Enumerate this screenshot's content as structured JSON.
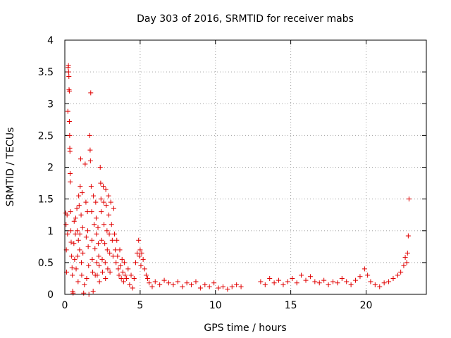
{
  "chart_data": {
    "type": "scatter",
    "title": "Day 303 of 2016, SRMTID for receiver mabs",
    "xlabel": "GPS time / hours",
    "ylabel": "SRMTID / TECUs",
    "xlim": [
      0,
      24
    ],
    "ylim": [
      0,
      4
    ],
    "xticks": [
      0,
      5,
      10,
      15,
      20
    ],
    "xtick_labels": [
      "0",
      "5",
      "10",
      "15",
      "20"
    ],
    "yticks": [
      0,
      0.5,
      1,
      1.5,
      2,
      2.5,
      3,
      3.5,
      4
    ],
    "ytick_labels": [
      "0",
      "0.5",
      "1",
      "1.5",
      "2",
      "2.5",
      "3",
      "3.5",
      "4"
    ],
    "grid": true,
    "marker": "+",
    "color": "#e00000",
    "series": [
      {
        "name": "SRMTID",
        "points": [
          [
            0.05,
            1.28
          ],
          [
            0.08,
            1.1
          ],
          [
            0.1,
            0.7
          ],
          [
            0.12,
            0.35
          ],
          [
            0.15,
            1.25
          ],
          [
            0.18,
            0.95
          ],
          [
            0.2,
            2.88
          ],
          [
            0.22,
            3.57
          ],
          [
            0.24,
            3.6
          ],
          [
            0.25,
            3.5
          ],
          [
            0.27,
            3.43
          ],
          [
            0.28,
            3.22
          ],
          [
            0.3,
            3.2
          ],
          [
            0.3,
            2.72
          ],
          [
            0.32,
            2.5
          ],
          [
            0.33,
            2.3
          ],
          [
            0.34,
            2.25
          ],
          [
            0.35,
            1.9
          ],
          [
            0.36,
            1.77
          ],
          [
            0.38,
            1.3
          ],
          [
            0.4,
            1.0
          ],
          [
            0.42,
            0.82
          ],
          [
            0.45,
            0.6
          ],
          [
            0.48,
            0.42
          ],
          [
            0.5,
            0.3
          ],
          [
            0.52,
            0.05
          ],
          [
            0.55,
            0.02
          ],
          [
            0.6,
            0.8
          ],
          [
            0.62,
            1.15
          ],
          [
            0.65,
            0.55
          ],
          [
            0.7,
            0.95
          ],
          [
            0.72,
            1.2
          ],
          [
            0.75,
            0.4
          ],
          [
            0.8,
            1.35
          ],
          [
            0.82,
            1.0
          ],
          [
            0.85,
            0.6
          ],
          [
            0.88,
            0.2
          ],
          [
            0.9,
            0.85
          ],
          [
            0.92,
            1.55
          ],
          [
            0.95,
            1.4
          ],
          [
            0.98,
            0.7
          ],
          [
            1.0,
            0.95
          ],
          [
            1.02,
            1.7
          ],
          [
            1.05,
            2.13
          ],
          [
            1.08,
            1.25
          ],
          [
            1.1,
            0.5
          ],
          [
            1.12,
            0.3
          ],
          [
            1.15,
            1.6
          ],
          [
            1.18,
            1.05
          ],
          [
            1.2,
            0.65
          ],
          [
            1.25,
            0.02
          ],
          [
            1.3,
            0.15
          ],
          [
            1.35,
            2.05
          ],
          [
            1.4,
            1.45
          ],
          [
            1.42,
            0.9
          ],
          [
            1.45,
            0.25
          ],
          [
            1.5,
            1.3
          ],
          [
            1.52,
            1.0
          ],
          [
            1.55,
            0.75
          ],
          [
            1.58,
            0.45
          ],
          [
            1.6,
            0.0
          ],
          [
            1.65,
            2.5
          ],
          [
            1.68,
            2.27
          ],
          [
            1.7,
            2.1
          ],
          [
            1.72,
            3.17
          ],
          [
            1.75,
            1.7
          ],
          [
            1.78,
            1.3
          ],
          [
            1.8,
            0.85
          ],
          [
            1.82,
            0.55
          ],
          [
            1.85,
            0.35
          ],
          [
            1.88,
            0.05
          ],
          [
            1.9,
            1.55
          ],
          [
            1.95,
            1.1
          ],
          [
            2.0,
            0.72
          ],
          [
            2.02,
            0.3
          ],
          [
            2.05,
            1.45
          ],
          [
            2.08,
            1.2
          ],
          [
            2.1,
            0.95
          ],
          [
            2.12,
            0.5
          ],
          [
            2.15,
            0.3
          ],
          [
            2.2,
            1.05
          ],
          [
            2.22,
            0.8
          ],
          [
            2.25,
            0.6
          ],
          [
            2.28,
            0.45
          ],
          [
            2.3,
            0.2
          ],
          [
            2.35,
            2.0
          ],
          [
            2.38,
            1.75
          ],
          [
            2.4,
            1.5
          ],
          [
            2.42,
            1.3
          ],
          [
            2.45,
            0.85
          ],
          [
            2.48,
            0.55
          ],
          [
            2.5,
            0.35
          ],
          [
            2.55,
            1.7
          ],
          [
            2.58,
            1.45
          ],
          [
            2.6,
            1.1
          ],
          [
            2.65,
            0.8
          ],
          [
            2.68,
            0.5
          ],
          [
            2.7,
            0.25
          ],
          [
            2.72,
            1.65
          ],
          [
            2.75,
            1.4
          ],
          [
            2.8,
            1.0
          ],
          [
            2.82,
            0.7
          ],
          [
            2.85,
            0.4
          ],
          [
            2.9,
            1.55
          ],
          [
            2.92,
            1.25
          ],
          [
            2.95,
            0.95
          ],
          [
            2.98,
            0.65
          ],
          [
            3.0,
            0.35
          ],
          [
            3.05,
            1.45
          ],
          [
            3.1,
            1.1
          ],
          [
            3.15,
            0.85
          ],
          [
            3.2,
            0.6
          ],
          [
            3.25,
            1.35
          ],
          [
            3.3,
            0.95
          ],
          [
            3.35,
            0.7
          ],
          [
            3.4,
            0.5
          ],
          [
            3.45,
            0.85
          ],
          [
            3.5,
            0.6
          ],
          [
            3.55,
            0.4
          ],
          [
            3.6,
            0.3
          ],
          [
            3.65,
            0.7
          ],
          [
            3.7,
            0.45
          ],
          [
            3.75,
            0.25
          ],
          [
            3.8,
            0.55
          ],
          [
            3.85,
            0.35
          ],
          [
            3.9,
            0.2
          ],
          [
            3.95,
            0.5
          ],
          [
            4.0,
            0.3
          ],
          [
            4.1,
            0.25
          ],
          [
            4.2,
            0.4
          ],
          [
            4.3,
            0.15
          ],
          [
            4.4,
            0.3
          ],
          [
            4.5,
            0.1
          ],
          [
            4.6,
            0.25
          ],
          [
            4.7,
            0.5
          ],
          [
            4.8,
            0.65
          ],
          [
            4.9,
            0.85
          ],
          [
            4.95,
            0.6
          ],
          [
            5.0,
            0.7
          ],
          [
            5.05,
            0.45
          ],
          [
            5.1,
            0.65
          ],
          [
            5.2,
            0.55
          ],
          [
            5.3,
            0.4
          ],
          [
            5.4,
            0.3
          ],
          [
            5.5,
            0.25
          ],
          [
            5.6,
            0.18
          ],
          [
            5.8,
            0.12
          ],
          [
            6.0,
            0.2
          ],
          [
            6.3,
            0.15
          ],
          [
            6.6,
            0.22
          ],
          [
            6.9,
            0.18
          ],
          [
            7.2,
            0.15
          ],
          [
            7.5,
            0.2
          ],
          [
            7.8,
            0.12
          ],
          [
            8.1,
            0.18
          ],
          [
            8.4,
            0.15
          ],
          [
            8.7,
            0.2
          ],
          [
            9.0,
            0.1
          ],
          [
            9.3,
            0.15
          ],
          [
            9.6,
            0.12
          ],
          [
            9.9,
            0.18
          ],
          [
            10.2,
            0.1
          ],
          [
            10.5,
            0.12
          ],
          [
            10.8,
            0.08
          ],
          [
            11.1,
            0.12
          ],
          [
            11.4,
            0.15
          ],
          [
            11.7,
            0.12
          ],
          [
            13.0,
            0.2
          ],
          [
            13.3,
            0.15
          ],
          [
            13.6,
            0.25
          ],
          [
            13.9,
            0.18
          ],
          [
            14.2,
            0.22
          ],
          [
            14.5,
            0.15
          ],
          [
            14.8,
            0.2
          ],
          [
            15.1,
            0.25
          ],
          [
            15.4,
            0.18
          ],
          [
            15.7,
            0.3
          ],
          [
            16.0,
            0.22
          ],
          [
            16.3,
            0.28
          ],
          [
            16.6,
            0.2
          ],
          [
            16.9,
            0.18
          ],
          [
            17.2,
            0.22
          ],
          [
            17.5,
            0.15
          ],
          [
            17.8,
            0.2
          ],
          [
            18.1,
            0.18
          ],
          [
            18.4,
            0.25
          ],
          [
            18.7,
            0.2
          ],
          [
            19.0,
            0.15
          ],
          [
            19.3,
            0.22
          ],
          [
            19.6,
            0.28
          ],
          [
            19.9,
            0.4
          ],
          [
            20.1,
            0.3
          ],
          [
            20.3,
            0.2
          ],
          [
            20.6,
            0.15
          ],
          [
            20.9,
            0.12
          ],
          [
            21.2,
            0.18
          ],
          [
            21.5,
            0.2
          ],
          [
            21.8,
            0.25
          ],
          [
            22.1,
            0.3
          ],
          [
            22.3,
            0.35
          ],
          [
            22.5,
            0.45
          ],
          [
            22.6,
            0.58
          ],
          [
            22.7,
            0.5
          ],
          [
            22.75,
            0.65
          ],
          [
            22.8,
            0.92
          ],
          [
            22.85,
            1.5
          ]
        ]
      }
    ]
  }
}
